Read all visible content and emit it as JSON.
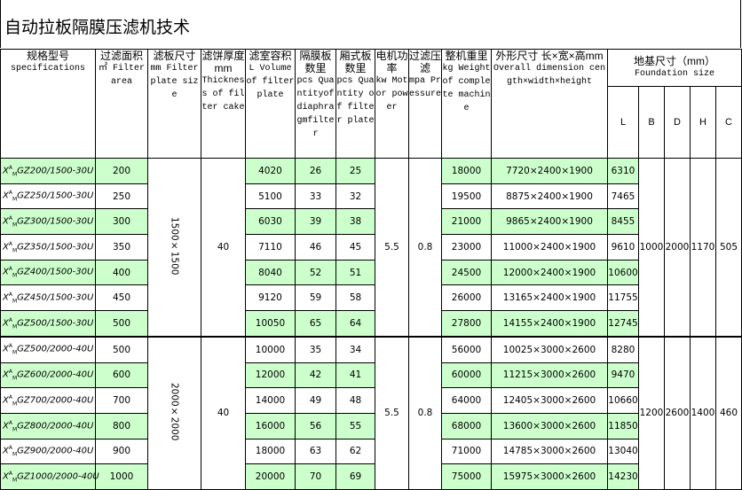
{
  "title": "自动拉板隔膜压滤机技术",
  "headers": [
    {
      "cn": "规格型号",
      "en": "specifications"
    },
    {
      "cn": "过滤面积",
      "en": "㎡ Filter area"
    },
    {
      "cn": "滤板尺寸",
      "en": "mm Filter plate size"
    },
    {
      "cn": "滤饼厚度mm",
      "en": "Thickness of filter cake"
    },
    {
      "cn": "滤室容积",
      "en": "L Volume of filter plate"
    },
    {
      "cn": "隔膜板数里",
      "en": "pcs Quantityofdiaphragmfilter"
    },
    {
      "cn": "厢式板数里",
      "en": "pcs Quantity of filter plate"
    },
    {
      "cn": "电机功率",
      "en": "kw Motor power"
    },
    {
      "cn": "过滤压滤",
      "en": "mpa Pressure"
    },
    {
      "cn": "整机重里",
      "en": "kg Weight of complete machine"
    },
    {
      "cn": "外形尺寸 长×宽×高mm",
      "en": "Overall dimension cength×width×height"
    }
  ],
  "foundation": {
    "cn": "地基尺寸（mm）",
    "en": "Foundation size",
    "cols": [
      "L",
      "B",
      "D",
      "H",
      "C"
    ]
  },
  "colors": {
    "highlight": "#ccffcc"
  },
  "groups": [
    {
      "plate_size": "1500×1500",
      "thickness": "40",
      "motor": "5.5",
      "pressure": "0.8",
      "B": "1000",
      "D": "2000",
      "H": "1170",
      "C": "505",
      "rows": [
        {
          "x": "X",
          "sup": "A",
          "sub": "M",
          "model": "GZ200/1500-30U",
          "area": "200",
          "volume": "4020",
          "diaphragm": "26",
          "chamber": "25",
          "weight": "18000",
          "dimension": "7720×2400×1900",
          "L": "6310",
          "green": true
        },
        {
          "x": "X",
          "sup": "A",
          "sub": "M",
          "model": "GZ250/1500-30U",
          "area": "250",
          "volume": "5100",
          "diaphragm": "33",
          "chamber": "32",
          "weight": "19500",
          "dimension": "8875×2400×1900",
          "L": "7465",
          "green": false
        },
        {
          "x": "X",
          "sup": "A",
          "sub": "M",
          "model": "GZ300/1500-30U",
          "area": "300",
          "volume": "6030",
          "diaphragm": "39",
          "chamber": "38",
          "weight": "21000",
          "dimension": "9865×2400×1900",
          "L": "8455",
          "green": true
        },
        {
          "x": "X",
          "sup": "A",
          "sub": "M",
          "model": "GZ350/1500-30U",
          "area": "350",
          "volume": "7110",
          "diaphragm": "46",
          "chamber": "45",
          "weight": "23000",
          "dimension": "11000×2400×1900",
          "L": "9610",
          "green": false
        },
        {
          "x": "X",
          "sup": "A",
          "sub": "M",
          "model": "GZ400/1500-30U",
          "area": "400",
          "volume": "8040",
          "diaphragm": "52",
          "chamber": "51",
          "weight": "24500",
          "dimension": "12000×2400×1900",
          "L": "10600",
          "green": true
        },
        {
          "x": "X",
          "sup": "A",
          "sub": "M",
          "model": "GZ450/1500-30U",
          "area": "450",
          "volume": "9120",
          "diaphragm": "59",
          "chamber": "58",
          "weight": "26000",
          "dimension": "13165×2400×1900",
          "L": "11755",
          "green": false
        },
        {
          "x": "X",
          "sup": "A",
          "sub": "M",
          "model": "GZ500/1500-30U",
          "area": "500",
          "volume": "10050",
          "diaphragm": "65",
          "chamber": "64",
          "weight": "27800",
          "dimension": "14155×2400×1900",
          "L": "12745",
          "green": true
        }
      ]
    },
    {
      "plate_size": "2000×2000",
      "thickness": "40",
      "motor": "5.5",
      "pressure": "0.8",
      "B": "1200",
      "D": "2600",
      "H": "1400",
      "C": "460",
      "rows": [
        {
          "x": "X",
          "sup": "A",
          "sub": "M",
          "model": "GZ500/2000-40U",
          "area": "500",
          "volume": "10000",
          "diaphragm": "35",
          "chamber": "34",
          "weight": "56000",
          "dimension": "10025×3000×2600",
          "L": "8280",
          "green": false
        },
        {
          "x": "X",
          "sup": "A",
          "sub": "M",
          "model": "GZ600/2000-40U",
          "area": "600",
          "volume": "12000",
          "diaphragm": "42",
          "chamber": "41",
          "weight": "60000",
          "dimension": "11215×3000×2600",
          "L": "9470",
          "green": true
        },
        {
          "x": "X",
          "sup": "A",
          "sub": "M",
          "model": "GZ700/2000-40U",
          "area": "700",
          "volume": "14000",
          "diaphragm": "49",
          "chamber": "48",
          "weight": "64000",
          "dimension": "12405×3000×2600",
          "L": "10660",
          "green": false
        },
        {
          "x": "X",
          "sup": "A",
          "sub": "M",
          "model": "GZ800/2000-40U",
          "area": "800",
          "volume": "16000",
          "diaphragm": "56",
          "chamber": "55",
          "weight": "68000",
          "dimension": "13600×3000×2600",
          "L": "11850",
          "green": true
        },
        {
          "x": "X",
          "sup": "A",
          "sub": "M",
          "model": "GZ900/2000-40U",
          "area": "900",
          "volume": "18000",
          "diaphragm": "63",
          "chamber": "62",
          "weight": "71000",
          "dimension": "14785×3000×2600",
          "L": "13040",
          "green": false
        },
        {
          "x": "X",
          "sup": "A",
          "sub": "M",
          "model": "GZ1000/2000-40U",
          "area": "1000",
          "volume": "20000",
          "diaphragm": "70",
          "chamber": "69",
          "weight": "75000",
          "dimension": "15975×3000×2600",
          "L": "14230",
          "green": true
        }
      ]
    }
  ]
}
